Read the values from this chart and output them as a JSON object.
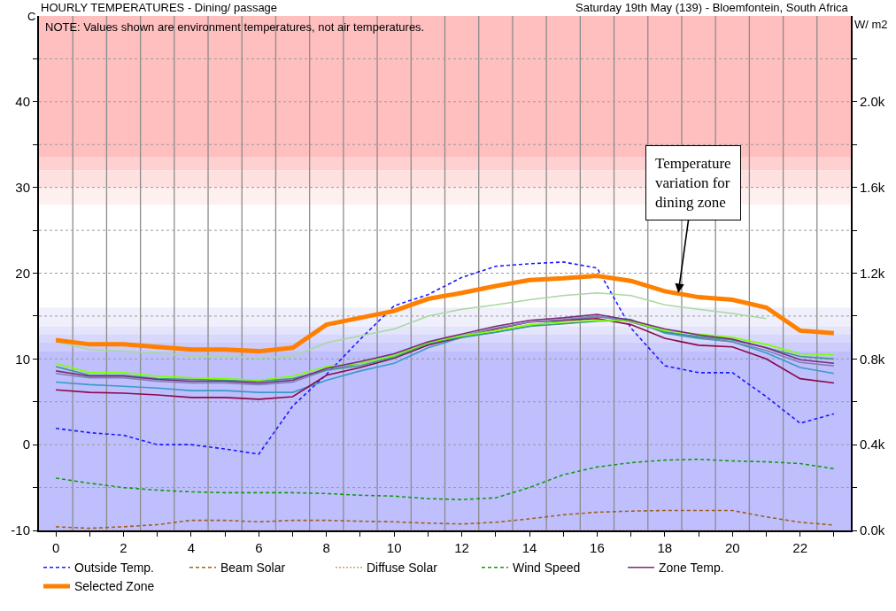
{
  "chart_data": {
    "type": "line",
    "title": "HOURLY TEMPERATURES - Dining/ passage",
    "subtitle": "Saturday 19th May (139) - Bloemfontein, South Africa",
    "ylabel": "C",
    "y2label": "W/ m2",
    "annotations": [
      "NOTE: Values shown are environment temperatures, not air temperatures.",
      {
        "text": "Temperature variation for dining zone",
        "x": 18.4,
        "y": 17.7
      }
    ],
    "x": [
      0,
      1,
      2,
      3,
      4,
      5,
      6,
      7,
      8,
      9,
      10,
      11,
      12,
      13,
      14,
      15,
      16,
      17,
      18,
      19,
      20,
      21,
      22,
      23
    ],
    "xlim": [
      -0.5,
      23.5
    ],
    "xticks": [
      0,
      {
        "value": 1,
        "label": null
      },
      2,
      {
        "value": 3,
        "label": null
      },
      4,
      {
        "value": 5,
        "label": null
      },
      6,
      {
        "value": 7,
        "label": null
      },
      8,
      {
        "value": 9,
        "label": null
      },
      10,
      {
        "value": 11,
        "label": null
      },
      12,
      {
        "value": 13,
        "label": null
      },
      14,
      {
        "value": 15,
        "label": null
      },
      16,
      {
        "value": 17,
        "label": null
      },
      18,
      {
        "value": 19,
        "label": null
      },
      20,
      {
        "value": 21,
        "label": null
      },
      22,
      {
        "value": 23,
        "label": null
      }
    ],
    "ylim": [
      -10,
      50
    ],
    "yticks": [
      -10,
      {
        "value": -5,
        "label": null
      },
      0,
      {
        "value": 5,
        "label": null
      },
      10,
      {
        "value": 15,
        "label": null
      },
      20,
      {
        "value": 25,
        "label": null
      },
      30,
      {
        "value": 35,
        "label": null
      },
      40,
      {
        "value": 45,
        "label": null
      }
    ],
    "y2lim": [
      0,
      2400
    ],
    "y2ticks": [
      {
        "value": 0,
        "label": "0.0k"
      },
      {
        "value": 200,
        "label": null
      },
      {
        "value": 400,
        "label": "0.4k"
      },
      {
        "value": 600,
        "label": null
      },
      {
        "value": 800,
        "label": "0.8k"
      },
      {
        "value": 1000,
        "label": null
      },
      {
        "value": 1200,
        "label": "1.2k"
      },
      {
        "value": 1400,
        "label": null
      },
      {
        "value": 1600,
        "label": "1.6k"
      },
      {
        "value": 1800,
        "label": null
      },
      {
        "value": 2000,
        "label": "2.0k"
      },
      {
        "value": 2200,
        "label": null
      }
    ],
    "grid": true,
    "legend": "bottom",
    "bands": [
      {
        "axis": "y",
        "from": 33.5,
        "to": 50,
        "color": "#ffbfbf"
      },
      {
        "axis": "y",
        "from": 32,
        "to": 33.5,
        "color": "#ffd0d0"
      },
      {
        "axis": "y",
        "from": 30,
        "to": 32,
        "color": "#ffe0e0"
      },
      {
        "axis": "y",
        "from": 28,
        "to": 30,
        "color": "#fff0f0"
      },
      {
        "axis": "y",
        "from": 13.8,
        "to": 16,
        "color": "#f0f0fc"
      },
      {
        "axis": "y",
        "from": 12.9,
        "to": 13.8,
        "color": "#e4e4fb"
      },
      {
        "axis": "y",
        "from": 11.9,
        "to": 12.9,
        "color": "#d8d8fc"
      },
      {
        "axis": "y",
        "from": 10.85,
        "to": 11.9,
        "color": "#ccccfd"
      },
      {
        "axis": "y",
        "from": -10,
        "to": 10.85,
        "color": "#bfbffe"
      }
    ],
    "series": [
      {
        "name": "Outside Temp.",
        "color": "#1a1aff",
        "line_style": "dashed",
        "values": [
          1.9,
          1.4,
          1.1,
          0,
          0,
          -0.5,
          -1.1,
          4.5,
          8.2,
          12.3,
          16.2,
          17.5,
          19.5,
          20.8,
          21.1,
          21.3,
          20.6,
          13.6,
          9.2,
          8.4,
          8.4,
          5.6,
          2.5,
          3.6
        ]
      },
      {
        "name": "Beam Solar",
        "color": "#a0601a",
        "line_style": "dashed",
        "axis": "y2",
        "values": [
          17,
          10,
          17,
          27,
          47,
          47,
          40,
          47,
          47,
          43,
          40,
          34,
          30,
          38,
          54,
          73,
          85,
          90,
          93,
          93,
          93,
          63,
          38,
          25
        ]
      },
      {
        "name": "Diffuse Solar",
        "color": "#c8a070",
        "line_style": "dotted",
        "axis": "y2",
        "values": [
          0,
          0,
          0,
          0,
          0,
          0,
          0,
          0,
          0,
          0,
          0,
          0,
          0,
          0,
          0,
          0,
          0,
          0,
          0,
          0,
          0,
          0,
          0,
          0
        ]
      },
      {
        "name": "Wind Speed",
        "color": "#129a12",
        "line_style": "dashed",
        "values": [
          -3.9,
          -4.5,
          -5.0,
          -5.3,
          -5.5,
          -5.6,
          -5.6,
          -5.6,
          -5.7,
          -5.9,
          -6.0,
          -6.3,
          -6.4,
          -6.2,
          -5.0,
          -3.5,
          -2.6,
          -2.1,
          -1.8,
          -1.7,
          -1.9,
          -2.0,
          -2.2,
          -2.8
        ]
      },
      {
        "color": "#a8d8a0",
        "values": [
          12.0,
          11.1,
          10.9,
          10.7,
          10.3,
          10.3,
          10.1,
          10.3,
          11.9,
          12.7,
          13.5,
          15.0,
          15.8,
          16.3,
          16.9,
          17.4,
          17.7,
          17.4,
          16.3,
          15.8,
          15.3,
          14.7,
          null,
          null
        ]
      },
      {
        "color": "#3a9ac8",
        "values": [
          7.3,
          7.0,
          6.8,
          6.6,
          6.3,
          6.3,
          6.1,
          6.1,
          7.5,
          8.6,
          9.5,
          11.3,
          12.5,
          13.1,
          13.8,
          14.5,
          14.9,
          14.6,
          13.0,
          12.4,
          12.0,
          10.7,
          9.0,
          8.3
        ]
      },
      {
        "color": "#8a0a4a",
        "values": [
          6.4,
          6.1,
          6.0,
          5.8,
          5.5,
          5.5,
          5.3,
          5.6,
          8.1,
          9.0,
          10.1,
          11.6,
          12.6,
          13.5,
          14.3,
          14.5,
          14.7,
          14.0,
          12.4,
          11.6,
          11.4,
          10.0,
          7.7,
          7.2
        ]
      },
      {
        "color": "#8080b8",
        "values": [
          8.3,
          7.8,
          7.8,
          7.4,
          7.2,
          7.2,
          7.0,
          7.3,
          8.7,
          9.5,
          10.4,
          11.8,
          12.7,
          13.6,
          14.3,
          14.6,
          15.0,
          14.3,
          13.2,
          12.5,
          12.0,
          11.0,
          9.6,
          9.2
        ]
      },
      {
        "color": "#3a9a8a",
        "values": [
          9.1,
          8.1,
          8.1,
          7.7,
          7.6,
          7.5,
          7.4,
          7.7,
          8.7,
          9.2,
          10.2,
          11.8,
          12.6,
          13.1,
          13.8,
          14.1,
          14.4,
          14.5,
          13.1,
          12.6,
          12.2,
          11.3,
          10.3,
          10.0
        ]
      },
      {
        "color": "#80ff00",
        "values": [
          9.5,
          8.4,
          8.4,
          8.0,
          7.8,
          7.7,
          7.5,
          8.0,
          9.1,
          9.5,
          10.4,
          11.9,
          12.7,
          13.3,
          14.0,
          14.3,
          14.5,
          14.4,
          13.3,
          12.9,
          12.5,
          11.7,
          10.6,
          10.5
        ]
      },
      {
        "name": "Zone Temp.",
        "color": "#7a2a7a",
        "values": [
          8.6,
          8.0,
          8.0,
          7.6,
          7.4,
          7.4,
          7.2,
          7.5,
          8.9,
          9.7,
          10.6,
          12.0,
          12.9,
          13.8,
          14.5,
          14.8,
          15.2,
          14.5,
          13.5,
          12.8,
          12.3,
          11.3,
          9.9,
          9.5
        ]
      },
      {
        "name": "Selected Zone",
        "color": "#ff8000",
        "values": [
          12.2,
          11.7,
          11.7,
          11.4,
          11.1,
          11.1,
          10.9,
          11.3,
          14.0,
          14.8,
          15.6,
          17.0,
          17.7,
          18.5,
          19.2,
          19.4,
          19.7,
          19.1,
          17.9,
          17.2,
          16.9,
          16.0,
          13.3,
          13.0
        ]
      }
    ]
  }
}
